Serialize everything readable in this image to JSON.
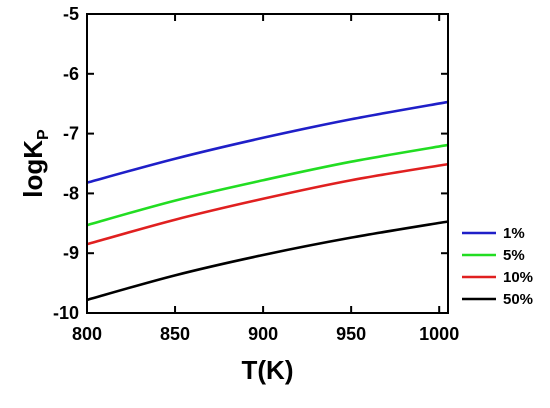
{
  "chart_data": {
    "type": "line",
    "title": "",
    "xlabel": "T(K)",
    "ylabel_main": "logK",
    "ylabel_sub": "P",
    "xlim": [
      800,
      1005
    ],
    "ylim": [
      -10,
      -5
    ],
    "xticks": [
      800,
      850,
      900,
      950,
      1000
    ],
    "yticks": [
      -10,
      -9,
      -8,
      -7,
      -6,
      -5
    ],
    "grid": false,
    "legend_position": "right",
    "series": [
      {
        "name": "1%",
        "color": "#1f1fc8",
        "x": [
          800,
          850,
          900,
          950,
          1005
        ],
        "y": [
          -7.82,
          -7.42,
          -7.07,
          -6.76,
          -6.47
        ]
      },
      {
        "name": "5%",
        "color": "#22dd22",
        "x": [
          800,
          850,
          900,
          950,
          1005
        ],
        "y": [
          -8.53,
          -8.12,
          -7.78,
          -7.47,
          -7.19
        ]
      },
      {
        "name": "10%",
        "color": "#e02020",
        "x": [
          800,
          850,
          900,
          950,
          1005
        ],
        "y": [
          -8.85,
          -8.44,
          -8.09,
          -7.78,
          -7.51
        ]
      },
      {
        "name": "50%",
        "color": "#000000",
        "x": [
          800,
          850,
          900,
          950,
          1005
        ],
        "y": [
          -9.78,
          -9.37,
          -9.03,
          -8.74,
          -8.47
        ]
      }
    ]
  }
}
